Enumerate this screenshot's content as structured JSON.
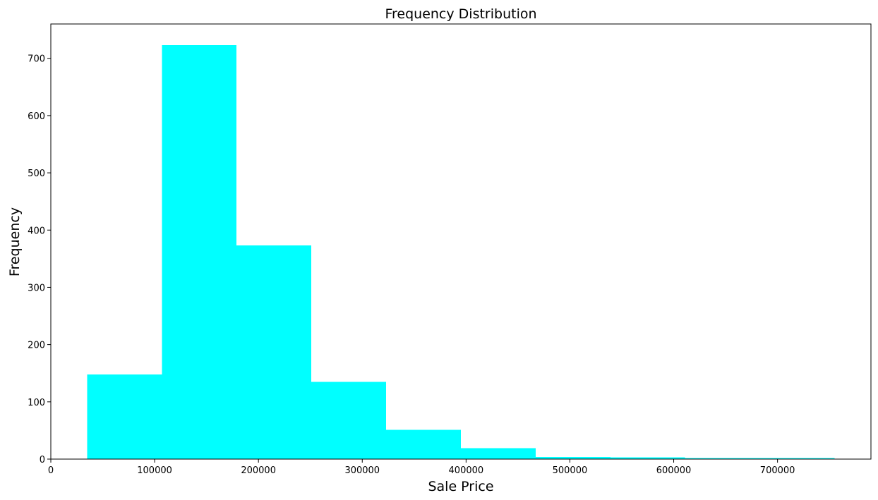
{
  "chart_data": {
    "type": "bar",
    "title": "Frequency Distribution",
    "xlabel": "Sale Price",
    "ylabel": "Frequency",
    "bin_edges": [
      34900,
      106910,
      178920,
      250930,
      322940,
      394950,
      466960,
      538970,
      610980,
      682990,
      755000
    ],
    "values": [
      148,
      723,
      373,
      135,
      51,
      19,
      4,
      3,
      2,
      2
    ],
    "xlim": [
      0,
      790000
    ],
    "ylim": [
      0,
      760
    ],
    "xticks": [
      0,
      100000,
      200000,
      300000,
      400000,
      500000,
      600000,
      700000
    ],
    "yticks": [
      0,
      100,
      200,
      300,
      400,
      500,
      600,
      700
    ],
    "bar_color": "#00ffff",
    "grid": false
  }
}
